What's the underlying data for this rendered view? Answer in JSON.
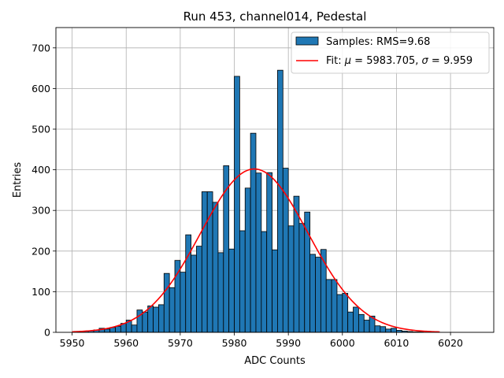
{
  "chart_data": {
    "type": "bar",
    "title": "Run 453, channel014, Pedestal",
    "xlabel": "ADC Counts",
    "ylabel": "Entries",
    "xlim": [
      5947,
      6028
    ],
    "ylim": [
      0,
      750
    ],
    "xticks": [
      5950,
      5960,
      5970,
      5980,
      5990,
      6000,
      6010,
      6020
    ],
    "yticks": [
      0,
      100,
      200,
      300,
      400,
      500,
      600,
      700
    ],
    "grid": true,
    "legend_position": "top-right",
    "bar_color": "#1f77b4",
    "fit_color": "#ff0000",
    "bin_width": 1,
    "histogram": {
      "name": "Samples: RMS=9.68",
      "bin_starts": [
        5951,
        5952,
        5953,
        5954,
        5955,
        5956,
        5957,
        5958,
        5959,
        5960,
        5961,
        5962,
        5963,
        5964,
        5965,
        5966,
        5967,
        5968,
        5969,
        5970,
        5971,
        5972,
        5973,
        5974,
        5975,
        5976,
        5977,
        5978,
        5979,
        5980,
        5981,
        5982,
        5983,
        5984,
        5985,
        5986,
        5987,
        5988,
        5989,
        5990,
        5991,
        5992,
        5993,
        5994,
        5995,
        5996,
        5997,
        5998,
        5999,
        6000,
        6001,
        6002,
        6003,
        6004,
        6005,
        6006,
        6007,
        6008,
        6009,
        6010,
        6011,
        6012,
        6013,
        6014,
        6015
      ],
      "counts": [
        2,
        3,
        4,
        6,
        10,
        8,
        12,
        15,
        22,
        30,
        18,
        55,
        50,
        65,
        62,
        68,
        145,
        110,
        177,
        148,
        240,
        190,
        212,
        346,
        346,
        320,
        196,
        410,
        205,
        630,
        250,
        355,
        490,
        392,
        248,
        393,
        203,
        645,
        404,
        262,
        335,
        268,
        296,
        192,
        185,
        204,
        130,
        130,
        93,
        96,
        50,
        62,
        44,
        30,
        40,
        16,
        14,
        8,
        10,
        5,
        3,
        2,
        1,
        1,
        0
      ]
    },
    "fit": {
      "name_prefix": "Fit: ",
      "mu_label": "μ",
      "mu_value": "5983.705",
      "sigma_label": "σ",
      "sigma_value": "9.959",
      "mu": 5983.705,
      "sigma": 9.959,
      "amplitude": 402,
      "x_range": [
        5950,
        6018
      ]
    }
  }
}
